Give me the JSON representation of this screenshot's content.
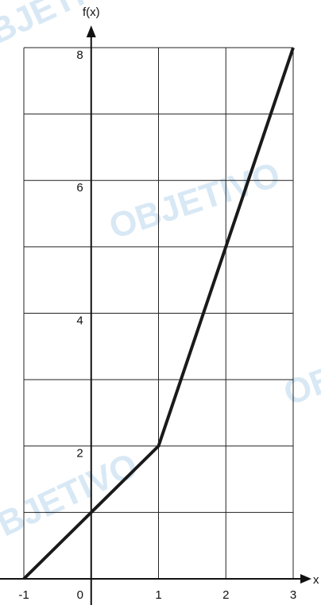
{
  "chart_data": {
    "type": "line",
    "watermark": "OBJETIVO",
    "x_label": "x",
    "y_label": "f(x)",
    "x": [
      -1,
      0,
      1,
      2,
      3
    ],
    "values": [
      0,
      1,
      2,
      5,
      8
    ],
    "color": "#1a1a1a",
    "xlim": [
      -1,
      3
    ],
    "ylim": [
      0,
      8
    ],
    "xticks": [
      -1,
      0,
      1,
      2,
      3
    ],
    "yticks": [
      2,
      4,
      6,
      8
    ],
    "ygrid": [
      0,
      1,
      2,
      3,
      4,
      5,
      6,
      7,
      8
    ],
    "grid": true
  }
}
